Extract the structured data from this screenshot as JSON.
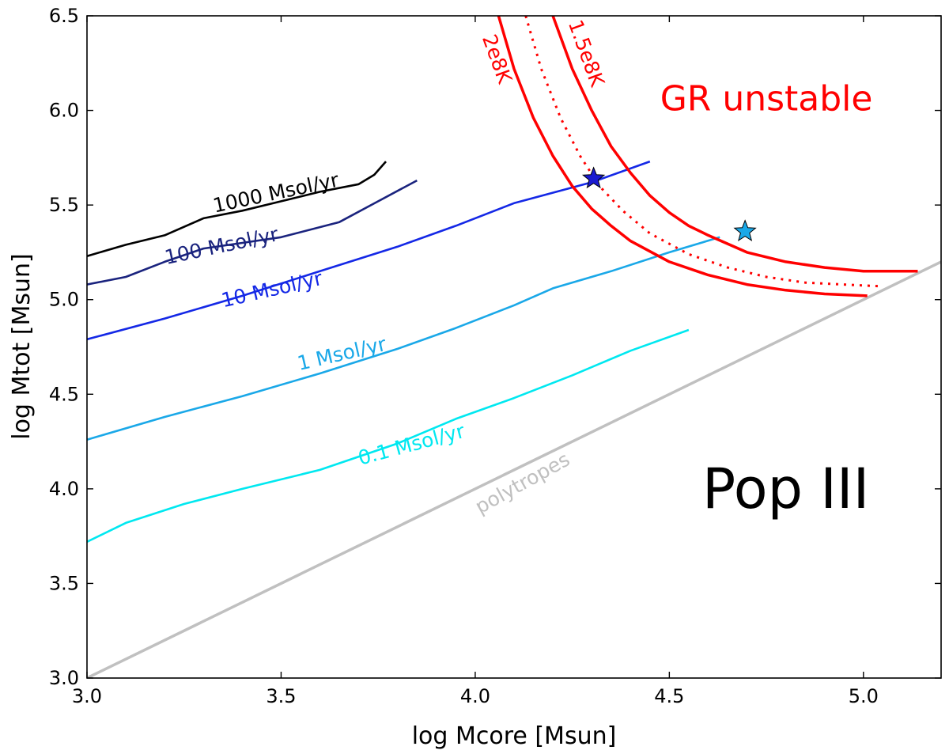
{
  "chart_data": {
    "type": "line",
    "title": "",
    "xlabel": "log Mcore [Msun]",
    "ylabel": "log Mtot [Msun]",
    "xlim": [
      3.0,
      5.2
    ],
    "ylim": [
      3.0,
      6.5
    ],
    "xticks": [
      3.0,
      3.5,
      4.0,
      4.5,
      5.0
    ],
    "yticks": [
      3.0,
      3.5,
      4.0,
      4.5,
      5.0,
      5.5,
      6.0,
      6.5
    ],
    "xtick_labels": [
      "3.0",
      "3.5",
      "4.0",
      "4.5",
      "5.0"
    ],
    "ytick_labels": [
      "3.0",
      "3.5",
      "4.0",
      "4.5",
      "5.0",
      "5.5",
      "6.0",
      "6.5"
    ],
    "grid": false,
    "series": [
      {
        "name": "1000 Msol/yr",
        "label": "1000 Msol/yr",
        "color": "#000000",
        "x": [
          3.0,
          3.1,
          3.2,
          3.3,
          3.4,
          3.5,
          3.6,
          3.7,
          3.74,
          3.77
        ],
        "y": [
          5.23,
          5.29,
          5.34,
          5.43,
          5.47,
          5.52,
          5.57,
          5.61,
          5.66,
          5.73
        ],
        "label_pos": [
          3.49,
          5.53
        ],
        "label_angle": -12
      },
      {
        "name": "100 Msol/yr",
        "label": "100 Msol/yr",
        "color": "#1a237e",
        "x": [
          3.0,
          3.1,
          3.2,
          3.3,
          3.4,
          3.5,
          3.65,
          3.75,
          3.85
        ],
        "y": [
          5.08,
          5.12,
          5.2,
          5.27,
          5.3,
          5.33,
          5.41,
          5.52,
          5.63
        ],
        "label_pos": [
          3.35,
          5.25
        ],
        "label_angle": -12
      },
      {
        "name": "10 Msol/yr",
        "label": "10 Msol/yr",
        "color": "#1428e6",
        "x": [
          3.0,
          3.2,
          3.4,
          3.6,
          3.8,
          3.95,
          4.1,
          4.3,
          4.45
        ],
        "y": [
          4.79,
          4.9,
          5.02,
          5.15,
          5.28,
          5.39,
          5.51,
          5.62,
          5.73
        ],
        "label_pos": [
          3.48,
          5.02
        ],
        "label_angle": -13
      },
      {
        "name": "1 Msol/yr",
        "label": "1 Msol/yr",
        "color": "#1aa8e8",
        "x": [
          3.0,
          3.2,
          3.4,
          3.6,
          3.8,
          3.95,
          4.1,
          4.2,
          4.35,
          4.5,
          4.63
        ],
        "y": [
          4.26,
          4.38,
          4.49,
          4.61,
          4.74,
          4.85,
          4.97,
          5.06,
          5.15,
          5.25,
          5.33
        ],
        "label_pos": [
          3.66,
          4.68
        ],
        "label_angle": -13
      },
      {
        "name": "0.1 Msol/yr",
        "label": "0.1 Msol/yr",
        "color": "#00e8f0",
        "x": [
          3.0,
          3.1,
          3.25,
          3.4,
          3.6,
          3.8,
          3.95,
          4.1,
          4.25,
          4.4,
          4.55
        ],
        "y": [
          3.72,
          3.82,
          3.92,
          4.0,
          4.1,
          4.24,
          4.37,
          4.48,
          4.6,
          4.73,
          4.84
        ],
        "label_pos": [
          3.84,
          4.2
        ],
        "label_angle": -15
      },
      {
        "name": "polytropes",
        "label": "polytropes",
        "color": "#c0c0c0",
        "x": [
          3.0,
          5.2
        ],
        "y": [
          3.0,
          5.2
        ],
        "label_pos": [
          4.13,
          4.0
        ],
        "label_angle": -29
      },
      {
        "name": "2e8K",
        "label": "2e8K",
        "color": "#ff0000",
        "x": [
          4.06,
          4.1,
          4.15,
          4.2,
          4.25,
          4.3,
          4.35,
          4.4,
          4.5,
          4.6,
          4.7,
          4.8,
          4.9,
          5.01
        ],
        "y": [
          6.5,
          6.22,
          5.96,
          5.76,
          5.6,
          5.48,
          5.39,
          5.31,
          5.2,
          5.13,
          5.08,
          5.05,
          5.03,
          5.02
        ],
        "label_pos": [
          4.04,
          6.26
        ],
        "label_angle": 70
      },
      {
        "name": "threshold (dotted)",
        "label": "",
        "color": "#ff0000",
        "x": [
          4.13,
          4.17,
          4.22,
          4.27,
          4.32,
          4.38,
          4.45,
          4.55,
          4.65,
          4.75,
          4.85,
          4.95,
          5.05
        ],
        "y": [
          6.5,
          6.22,
          5.96,
          5.76,
          5.6,
          5.47,
          5.35,
          5.24,
          5.17,
          5.12,
          5.09,
          5.08,
          5.07
        ],
        "label_pos": null,
        "label_angle": 0
      },
      {
        "name": "1.5e8K",
        "label": "1.5e8K",
        "color": "#ff0000",
        "x": [
          4.2,
          4.25,
          4.3,
          4.35,
          4.4,
          4.45,
          4.5,
          4.55,
          4.6,
          4.7,
          4.8,
          4.9,
          5.0,
          5.14
        ],
        "y": [
          6.5,
          6.22,
          6.0,
          5.81,
          5.67,
          5.55,
          5.46,
          5.39,
          5.34,
          5.25,
          5.2,
          5.17,
          5.15,
          5.15
        ],
        "label_pos": [
          4.27,
          6.29
        ],
        "label_angle": 70
      }
    ],
    "markers": [
      {
        "name": "star-10",
        "x": 4.305,
        "y": 5.64,
        "color": "#1a1ad0"
      },
      {
        "name": "star-1",
        "x": 4.695,
        "y": 5.36,
        "color": "#1aa8e8"
      }
    ],
    "annotations": [
      {
        "text": "GR unstable",
        "x": 4.75,
        "y": 6.0,
        "color": "#ff0000",
        "size": 44
      },
      {
        "text": "Pop III",
        "x": 4.8,
        "y": 3.9,
        "color": "#000000",
        "size": 70
      }
    ]
  }
}
